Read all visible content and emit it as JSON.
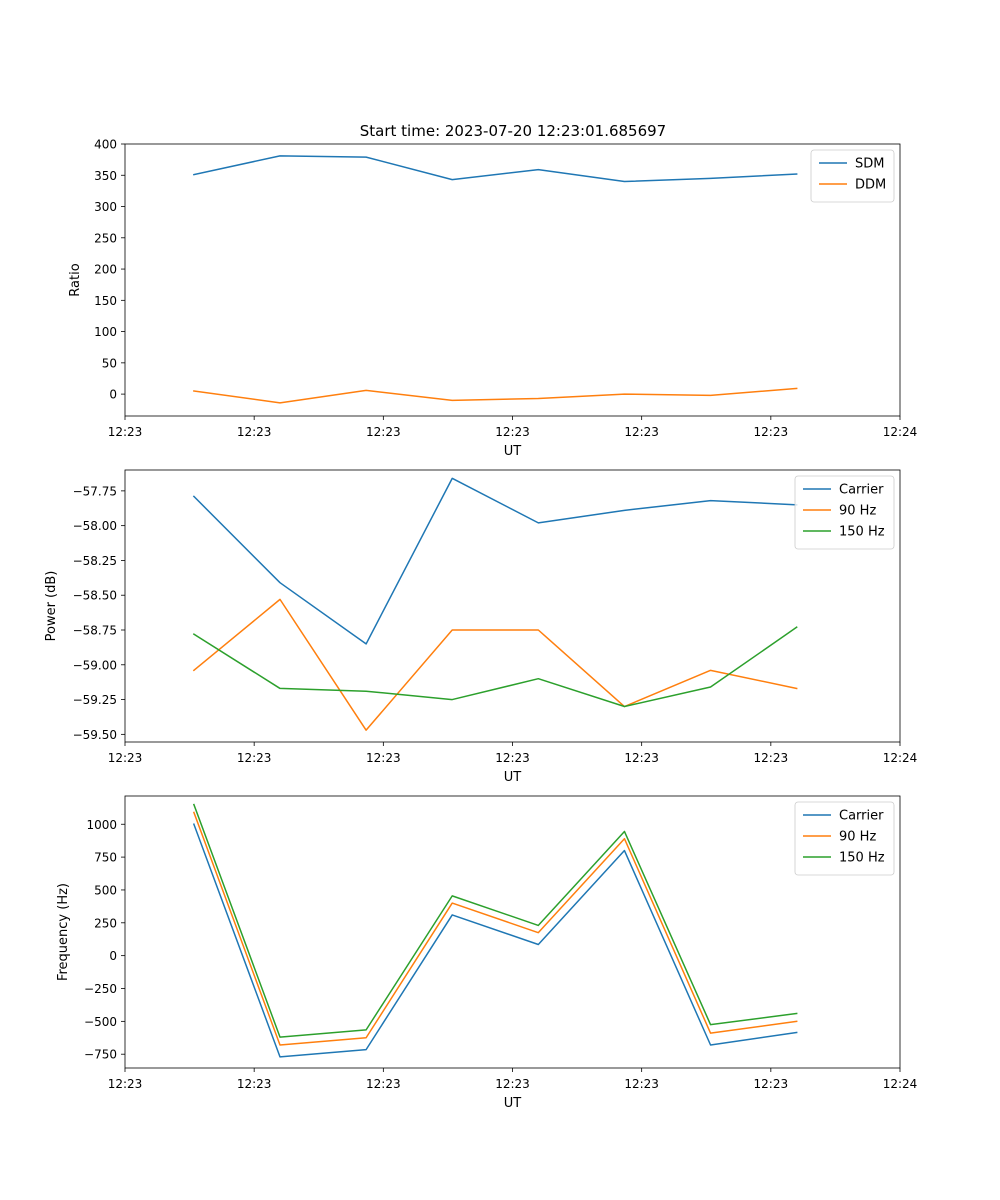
{
  "figure_title": "Start time: 2023-07-20 12:23:01.685697",
  "chart_data": [
    {
      "type": "line",
      "title": "Start time: 2023-07-20 12:23:01.685697",
      "xlabel": "UT",
      "ylabel": "Ratio",
      "x": [
        1,
        2,
        3,
        4,
        5,
        6,
        7,
        8
      ],
      "xlim": [
        0.2,
        9.2
      ],
      "ylim": [
        -35,
        400
      ],
      "xtick_values": [
        0.2,
        1.7,
        3.2,
        4.7,
        6.2,
        7.7,
        9.2
      ],
      "xtick_labels": [
        "12:23",
        "12:23",
        "12:23",
        "12:23",
        "12:23",
        "12:23",
        "12:24"
      ],
      "ytick_values": [
        0,
        50,
        100,
        150,
        200,
        250,
        300,
        350,
        400
      ],
      "ytick_labels": [
        "0",
        "50",
        "100",
        "150",
        "200",
        "250",
        "300",
        "350",
        "400"
      ],
      "legend_position": "top-right",
      "series": [
        {
          "name": "SDM",
          "color": "#1f77b4",
          "values": [
            351,
            381,
            379,
            343,
            359,
            340,
            345,
            352
          ]
        },
        {
          "name": "DDM",
          "color": "#ff7f0e",
          "values": [
            5,
            -14,
            6,
            -10,
            -7,
            0,
            -2,
            9
          ]
        }
      ]
    },
    {
      "type": "line",
      "title": "",
      "xlabel": "UT",
      "ylabel": "Power (dB)",
      "x": [
        1,
        2,
        3,
        4,
        5,
        6,
        7,
        8
      ],
      "xlim": [
        0.2,
        9.2
      ],
      "ylim": [
        -59.555,
        -57.6
      ],
      "xtick_values": [
        0.2,
        1.7,
        3.2,
        4.7,
        6.2,
        7.7,
        9.2
      ],
      "xtick_labels": [
        "12:23",
        "12:23",
        "12:23",
        "12:23",
        "12:23",
        "12:23",
        "12:24"
      ],
      "ytick_values": [
        -59.5,
        -59.25,
        -59.0,
        -58.75,
        -58.5,
        -58.25,
        -58.0,
        -57.75
      ],
      "ytick_labels": [
        "−59.50",
        "−59.25",
        "−59.00",
        "−58.75",
        "−58.50",
        "−58.25",
        "−58.00",
        "−57.75"
      ],
      "legend_position": "top-right",
      "series": [
        {
          "name": "Carrier",
          "color": "#1f77b4",
          "values": [
            -57.79,
            -58.41,
            -58.85,
            -57.66,
            -57.98,
            -57.89,
            -57.82,
            -57.85
          ]
        },
        {
          "name": "90 Hz",
          "color": "#ff7f0e",
          "values": [
            -59.04,
            -58.53,
            -59.47,
            -58.75,
            -58.75,
            -59.3,
            -59.04,
            -59.17
          ]
        },
        {
          "name": "150 Hz",
          "color": "#2ca02c",
          "values": [
            -58.78,
            -59.17,
            -59.19,
            -59.25,
            -59.1,
            -59.3,
            -59.16,
            -58.73
          ]
        }
      ]
    },
    {
      "type": "line",
      "title": "",
      "xlabel": "UT",
      "ylabel": "Frequency (Hz)",
      "x": [
        1,
        2,
        3,
        4,
        5,
        6,
        7,
        8
      ],
      "xlim": [
        0.2,
        9.2
      ],
      "ylim": [
        -855,
        1215
      ],
      "xtick_values": [
        0.2,
        1.7,
        3.2,
        4.7,
        6.2,
        7.7,
        9.2
      ],
      "xtick_labels": [
        "12:23",
        "12:23",
        "12:23",
        "12:23",
        "12:23",
        "12:23",
        "12:24"
      ],
      "ytick_values": [
        -750,
        -500,
        -250,
        0,
        250,
        500,
        750,
        1000
      ],
      "ytick_labels": [
        "−750",
        "−500",
        "−250",
        "0",
        "250",
        "500",
        "750",
        "1000"
      ],
      "legend_position": "top-right",
      "series": [
        {
          "name": "Carrier",
          "color": "#1f77b4",
          "values": [
            1000,
            -770,
            -715,
            310,
            85,
            800,
            -680,
            -585
          ]
        },
        {
          "name": "90 Hz",
          "color": "#ff7f0e",
          "values": [
            1090,
            -680,
            -625,
            400,
            175,
            890,
            -590,
            -500
          ]
        },
        {
          "name": "150 Hz",
          "color": "#2ca02c",
          "values": [
            1150,
            -620,
            -565,
            455,
            230,
            945,
            -525,
            -440
          ]
        }
      ]
    }
  ]
}
